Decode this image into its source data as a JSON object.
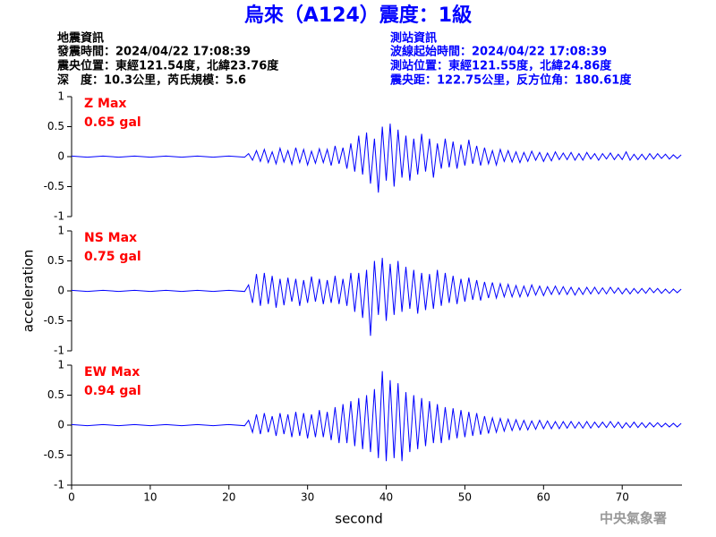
{
  "header": {
    "title": "烏來（A124）震度：1級",
    "left": [
      "地震資訊",
      "發震時間：2024/04/22 17:08:39",
      "震央位置：東經121.54度，北緯23.76度",
      "深　度：10.3公里，芮氏規模：5.6"
    ],
    "right": [
      "測站資訊",
      "波線起始時間：2024/04/22 17:08:39",
      "測站位置：東經121.55度，北緯24.86度",
      "震央距：122.75公里，反方位角：180.61度"
    ]
  },
  "footer": "中央氣象署",
  "chart_data": [
    {
      "type": "line",
      "label": "Z Max",
      "peak": "0.65 gal",
      "xlim": [
        0,
        77.6
      ],
      "ylim": [
        -1,
        1
      ],
      "yticks": [
        1,
        0.5,
        0,
        -0.5,
        -1
      ],
      "x": [
        0,
        2,
        4,
        6,
        8,
        10,
        12,
        14,
        16,
        18,
        20,
        22,
        22.5,
        23,
        23.5,
        24,
        24.5,
        25,
        25.5,
        26,
        26.5,
        27,
        27.5,
        28,
        28.5,
        29,
        29.5,
        30,
        30.5,
        31,
        31.5,
        32,
        32.5,
        33,
        33.5,
        34,
        34.5,
        35,
        35.5,
        36,
        36.5,
        37,
        37.5,
        38,
        38.5,
        39,
        39.5,
        40,
        40.5,
        41,
        41.5,
        42,
        42.5,
        43,
        43.5,
        44,
        44.5,
        45,
        45.5,
        46,
        46.5,
        47,
        47.5,
        48,
        48.5,
        49,
        49.5,
        50,
        50.5,
        51,
        51.5,
        52,
        52.5,
        53,
        53.5,
        54,
        54.5,
        55,
        55.5,
        56,
        56.5,
        57,
        57.5,
        58,
        58.5,
        59,
        59.5,
        60,
        60.5,
        61,
        61.5,
        62,
        62.5,
        63,
        63.5,
        64,
        64.5,
        65,
        65.5,
        66,
        66.5,
        67,
        67.5,
        68,
        68.5,
        69,
        69.5,
        70,
        70.5,
        71,
        71.5,
        72,
        72.5,
        73,
        73.5,
        74,
        74.5,
        75,
        75.5,
        76,
        76.5,
        77,
        77.5
      ],
      "series": [
        {
          "color": "#0000ff",
          "values": [
            0.01,
            -0.01,
            0.01,
            -0.01,
            0.01,
            -0.01,
            0.01,
            -0.01,
            0.01,
            -0.01,
            0.01,
            -0.01,
            0.05,
            -0.06,
            0.1,
            -0.08,
            0.12,
            -0.1,
            0.08,
            -0.12,
            0.14,
            -0.09,
            0.1,
            -0.13,
            0.15,
            -0.1,
            0.12,
            -0.14,
            0.09,
            -0.11,
            0.13,
            -0.1,
            0.12,
            -0.15,
            0.18,
            -0.12,
            0.15,
            -0.2,
            0.22,
            -0.25,
            0.35,
            -0.3,
            0.4,
            -0.45,
            0.3,
            -0.6,
            0.5,
            -0.4,
            0.55,
            -0.5,
            0.45,
            -0.35,
            0.35,
            -0.4,
            0.3,
            -0.3,
            0.38,
            -0.25,
            0.3,
            -0.35,
            0.22,
            -0.2,
            0.3,
            -0.18,
            0.25,
            -0.2,
            0.2,
            -0.15,
            0.28,
            -0.12,
            0.18,
            -0.15,
            0.15,
            -0.12,
            0.1,
            -0.14,
            0.12,
            -0.08,
            0.1,
            -0.09,
            0.08,
            -0.1,
            0.07,
            -0.08,
            0.09,
            -0.06,
            0.07,
            -0.08,
            0.06,
            -0.07,
            0.08,
            -0.05,
            0.06,
            -0.05,
            0.07,
            -0.06,
            0.05,
            -0.06,
            0.07,
            -0.04,
            0.05,
            -0.06,
            0.05,
            -0.04,
            0.06,
            -0.05,
            0.04,
            -0.05,
            0.08,
            -0.06,
            0.04,
            -0.05,
            0.04,
            -0.05,
            0.05,
            -0.04,
            0.05,
            -0.03,
            0.04,
            -0.04,
            0.03,
            -0.03,
            0.03
          ]
        }
      ]
    },
    {
      "type": "line",
      "label": "NS Max",
      "peak": "0.75 gal",
      "ylabel": "acceleration",
      "xlim": [
        0,
        77.6
      ],
      "ylim": [
        -1,
        1
      ],
      "yticks": [
        1,
        0.5,
        0,
        -0.5,
        -1
      ],
      "x": [
        0,
        2,
        4,
        6,
        8,
        10,
        12,
        14,
        16,
        18,
        20,
        22,
        22.5,
        23,
        23.5,
        24,
        24.5,
        25,
        25.5,
        26,
        26.5,
        27,
        27.5,
        28,
        28.5,
        29,
        29.5,
        30,
        30.5,
        31,
        31.5,
        32,
        32.5,
        33,
        33.5,
        34,
        34.5,
        35,
        35.5,
        36,
        36.5,
        37,
        37.5,
        38,
        38.5,
        39,
        39.5,
        40,
        40.5,
        41,
        41.5,
        42,
        42.5,
        43,
        43.5,
        44,
        44.5,
        45,
        45.5,
        46,
        46.5,
        47,
        47.5,
        48,
        48.5,
        49,
        49.5,
        50,
        50.5,
        51,
        51.5,
        52,
        52.5,
        53,
        53.5,
        54,
        54.5,
        55,
        55.5,
        56,
        56.5,
        57,
        57.5,
        58,
        58.5,
        59,
        59.5,
        60,
        60.5,
        61,
        61.5,
        62,
        62.5,
        63,
        63.5,
        64,
        64.5,
        65,
        65.5,
        66,
        66.5,
        67,
        67.5,
        68,
        68.5,
        69,
        69.5,
        70,
        70.5,
        71,
        71.5,
        72,
        72.5,
        73,
        73.5,
        74,
        74.5,
        75,
        75.5,
        76,
        76.5,
        77,
        77.5
      ],
      "series": [
        {
          "color": "#0000ff",
          "values": [
            0.01,
            -0.01,
            0.01,
            -0.01,
            0.01,
            -0.01,
            0.01,
            -0.01,
            0.01,
            -0.01,
            0.01,
            -0.01,
            0.1,
            -0.2,
            0.28,
            -0.25,
            0.3,
            -0.22,
            0.25,
            -0.28,
            0.2,
            -0.24,
            0.22,
            -0.18,
            0.2,
            -0.25,
            0.18,
            -0.2,
            0.24,
            -0.18,
            0.2,
            -0.22,
            0.18,
            -0.2,
            0.25,
            -0.22,
            0.2,
            -0.25,
            0.3,
            -0.35,
            0.3,
            -0.45,
            0.35,
            -0.75,
            0.5,
            -0.4,
            0.55,
            -0.5,
            0.45,
            -0.4,
            0.5,
            -0.35,
            0.4,
            -0.3,
            0.35,
            -0.38,
            0.3,
            -0.32,
            0.28,
            -0.3,
            0.35,
            -0.25,
            0.3,
            -0.2,
            0.25,
            -0.22,
            0.2,
            -0.18,
            0.22,
            -0.15,
            0.18,
            -0.16,
            0.15,
            -0.12,
            0.14,
            -0.12,
            0.12,
            -0.1,
            0.11,
            -0.1,
            0.09,
            -0.1,
            0.08,
            -0.09,
            0.1,
            -0.07,
            0.08,
            -0.08,
            0.07,
            -0.06,
            0.08,
            -0.06,
            0.07,
            -0.06,
            0.06,
            -0.07,
            0.05,
            -0.06,
            0.06,
            -0.05,
            0.06,
            -0.05,
            0.05,
            -0.05,
            0.06,
            -0.04,
            0.05,
            -0.05,
            0.04,
            -0.05,
            0.04,
            -0.04,
            0.04,
            -0.04,
            0.05,
            -0.03,
            0.04,
            -0.04,
            0.03,
            -0.04,
            0.03,
            -0.03,
            0.03
          ]
        }
      ]
    },
    {
      "type": "line",
      "label": "EW Max",
      "peak": "0.94 gal",
      "xlabel": "second",
      "xlim": [
        0,
        77.6
      ],
      "xticks": [
        0,
        10,
        20,
        30,
        40,
        50,
        60,
        70
      ],
      "ylim": [
        -1,
        1
      ],
      "yticks": [
        1,
        0.5,
        0,
        -0.5,
        -1
      ],
      "x": [
        0,
        2,
        4,
        6,
        8,
        10,
        12,
        14,
        16,
        18,
        20,
        22,
        22.5,
        23,
        23.5,
        24,
        24.5,
        25,
        25.5,
        26,
        26.5,
        27,
        27.5,
        28,
        28.5,
        29,
        29.5,
        30,
        30.5,
        31,
        31.5,
        32,
        32.5,
        33,
        33.5,
        34,
        34.5,
        35,
        35.5,
        36,
        36.5,
        37,
        37.5,
        38,
        38.5,
        39,
        39.5,
        40,
        40.5,
        41,
        41.5,
        42,
        42.5,
        43,
        43.5,
        44,
        44.5,
        45,
        45.5,
        46,
        46.5,
        47,
        47.5,
        48,
        48.5,
        49,
        49.5,
        50,
        50.5,
        51,
        51.5,
        52,
        52.5,
        53,
        53.5,
        54,
        54.5,
        55,
        55.5,
        56,
        56.5,
        57,
        57.5,
        58,
        58.5,
        59,
        59.5,
        60,
        60.5,
        61,
        61.5,
        62,
        62.5,
        63,
        63.5,
        64,
        64.5,
        65,
        65.5,
        66,
        66.5,
        67,
        67.5,
        68,
        68.5,
        69,
        69.5,
        70,
        70.5,
        71,
        71.5,
        72,
        72.5,
        73,
        73.5,
        74,
        74.5,
        75,
        75.5,
        76,
        76.5,
        77,
        77.5
      ],
      "series": [
        {
          "color": "#0000ff",
          "values": [
            0.01,
            -0.01,
            0.01,
            -0.01,
            0.01,
            -0.01,
            0.01,
            -0.01,
            0.01,
            -0.01,
            0.01,
            -0.01,
            0.08,
            -0.12,
            0.18,
            -0.15,
            0.2,
            -0.12,
            0.15,
            -0.18,
            0.2,
            -0.15,
            0.18,
            -0.2,
            0.22,
            -0.18,
            0.2,
            -0.22,
            0.18,
            -0.2,
            0.25,
            -0.2,
            0.22,
            -0.25,
            0.3,
            -0.3,
            0.35,
            -0.3,
            0.4,
            -0.35,
            0.45,
            -0.4,
            0.5,
            -0.45,
            0.6,
            -0.55,
            0.9,
            -0.6,
            0.75,
            -0.55,
            0.7,
            -0.6,
            0.55,
            -0.45,
            0.5,
            -0.4,
            0.45,
            -0.35,
            0.4,
            -0.3,
            0.35,
            -0.3,
            0.3,
            -0.25,
            0.28,
            -0.22,
            0.25,
            -0.2,
            0.22,
            -0.18,
            0.2,
            -0.16,
            0.15,
            -0.14,
            0.12,
            -0.12,
            0.11,
            -0.1,
            0.1,
            -0.09,
            0.09,
            -0.08,
            0.08,
            -0.08,
            0.07,
            -0.07,
            0.08,
            -0.06,
            0.07,
            -0.06,
            0.06,
            -0.06,
            0.06,
            -0.05,
            0.06,
            -0.05,
            0.05,
            -0.05,
            0.06,
            -0.05,
            0.05,
            -0.04,
            0.05,
            -0.04,
            0.06,
            -0.04,
            0.05,
            -0.05,
            0.04,
            -0.04,
            0.05,
            -0.04,
            0.04,
            -0.04,
            0.04,
            -0.03,
            0.04,
            -0.03,
            0.03,
            -0.03,
            0.03,
            -0.03,
            0.03
          ]
        }
      ]
    }
  ]
}
